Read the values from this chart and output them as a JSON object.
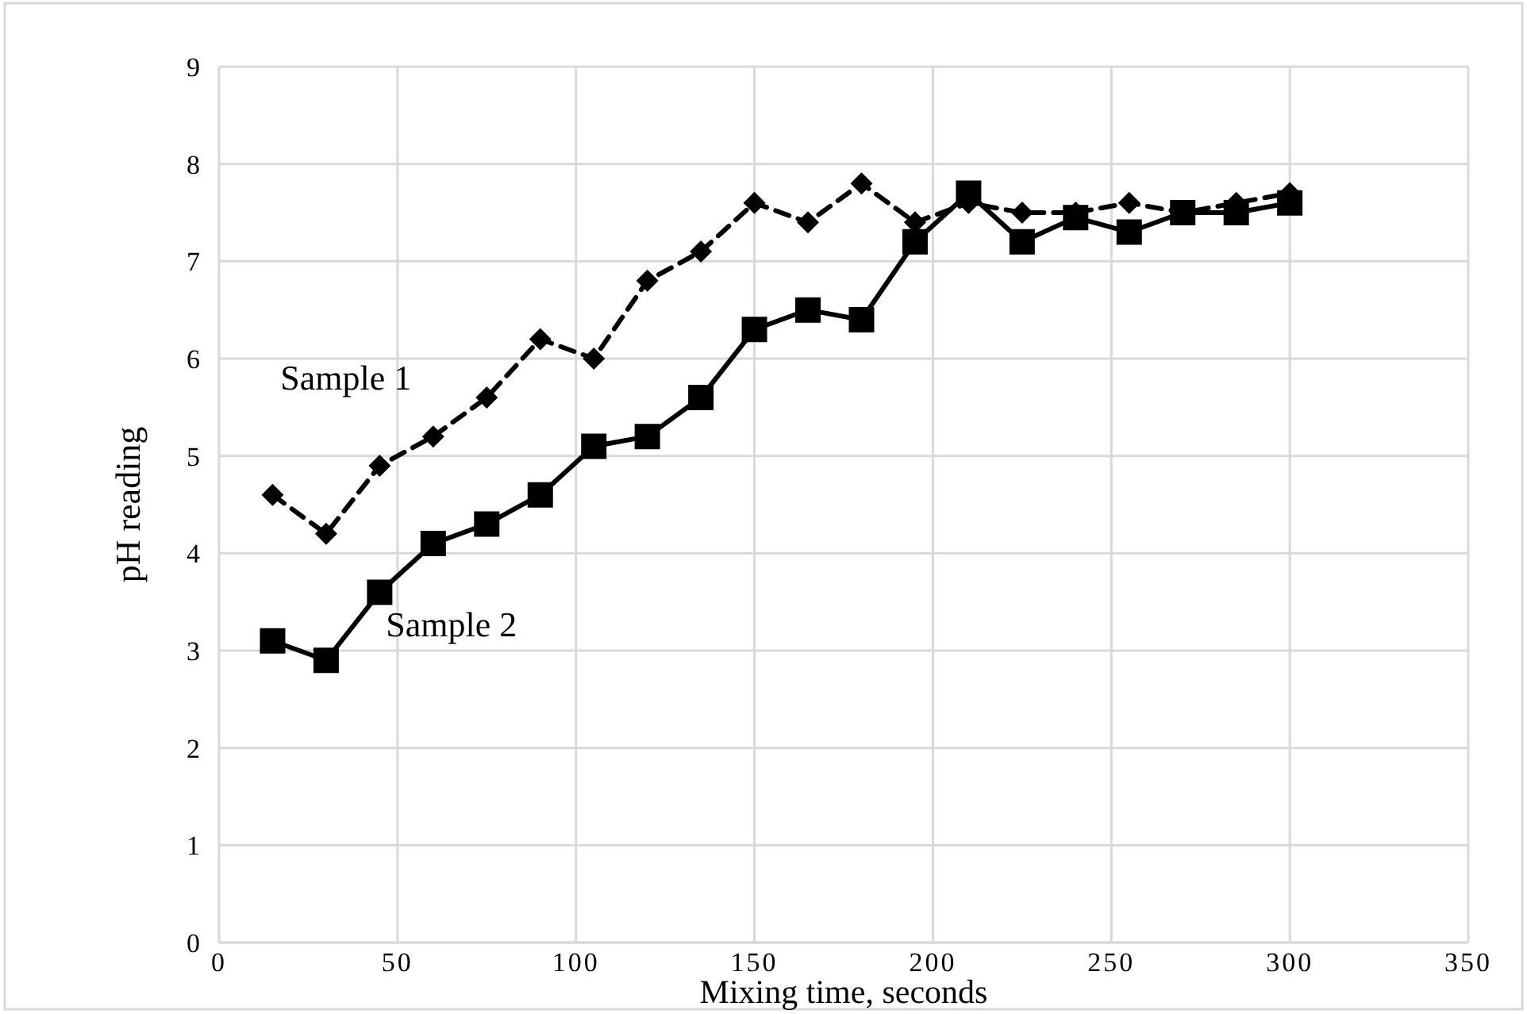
{
  "chart_data": {
    "type": "line",
    "xlabel": "Mixing time, seconds",
    "ylabel": "pH reading",
    "x": [
      15,
      30,
      45,
      60,
      75,
      90,
      105,
      120,
      135,
      150,
      165,
      180,
      195,
      210,
      225,
      240,
      255,
      270,
      285,
      300
    ],
    "series": [
      {
        "name": "Sample 1",
        "color": "#000000",
        "marker": "diamond",
        "line_style": "dashed",
        "values": [
          4.6,
          4.2,
          4.9,
          5.2,
          5.6,
          6.2,
          6.0,
          6.8,
          7.1,
          7.6,
          7.4,
          7.8,
          7.4,
          7.6,
          7.5,
          7.5,
          7.6,
          7.5,
          7.6,
          7.7
        ]
      },
      {
        "name": "Sample 2",
        "color": "#000000",
        "marker": "square",
        "line_style": "solid",
        "values": [
          3.1,
          2.9,
          3.6,
          4.1,
          4.3,
          4.6,
          5.1,
          5.2,
          5.6,
          6.3,
          6.5,
          6.4,
          7.2,
          7.7,
          7.2,
          7.45,
          7.3,
          7.5,
          7.5,
          7.6
        ]
      }
    ],
    "xlim": [
      0,
      350
    ],
    "xticks": [
      0,
      50,
      100,
      150,
      200,
      250,
      300,
      350
    ],
    "ylim": [
      0,
      9
    ],
    "yticks": [
      0,
      1,
      2,
      3,
      4,
      5,
      6,
      7,
      8,
      9
    ],
    "grid": true
  }
}
